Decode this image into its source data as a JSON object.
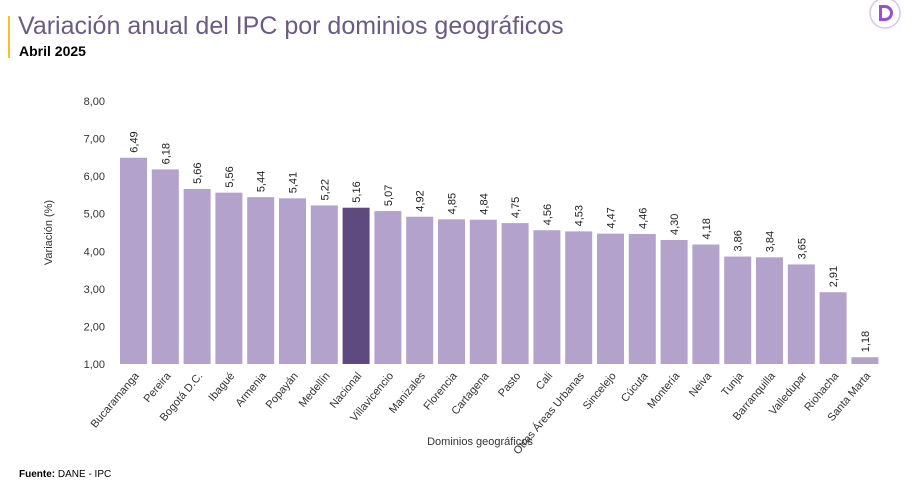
{
  "header": {
    "title": "Variación anual del IPC por dominios geográficos",
    "subtitle": "Abril 2025"
  },
  "footer": {
    "source_label": "Fuente:",
    "source_value": "DANE - IPC"
  },
  "colors": {
    "bar": "#b3a2cc",
    "highlight": "#5e4a7e",
    "accent": "#f2c230",
    "logo": "#9b4fd6"
  },
  "chart_data": {
    "type": "bar",
    "title": "",
    "xlabel": "Dominios geográficos",
    "ylabel": "Variación (%)",
    "ylim": [
      1,
      8
    ],
    "yticks": [
      "1,00",
      "2,00",
      "3,00",
      "4,00",
      "5,00",
      "6,00",
      "7,00",
      "8,00"
    ],
    "grid": false,
    "highlight": "Nacional",
    "categories": [
      "Bucaramanga",
      "Pereira",
      "Bogotá D.C.",
      "Ibagué",
      "Armenia",
      "Popayán",
      "Medellín",
      "Nacional",
      "Villavicencio",
      "Manizales",
      "Florencia",
      "Cartagena",
      "Pasto",
      "Cali",
      "Otras Áreas Urbanas",
      "Sincelejo",
      "Cúcuta",
      "Montería",
      "Neiva",
      "Tunja",
      "Barranquilla",
      "Valledupar",
      "Riohacha",
      "Santa Marta"
    ],
    "values": [
      6.49,
      6.18,
      5.66,
      5.56,
      5.44,
      5.41,
      5.22,
      5.16,
      5.07,
      4.92,
      4.85,
      4.84,
      4.75,
      4.56,
      4.53,
      4.47,
      4.46,
      4.3,
      4.18,
      3.86,
      3.84,
      3.65,
      2.91,
      1.18
    ],
    "data_labels": [
      "6,49",
      "6,18",
      "5,66",
      "5,56",
      "5,44",
      "5,41",
      "5,22",
      "5,16",
      "5,07",
      "4,92",
      "4,85",
      "4,84",
      "4,75",
      "4,56",
      "4,53",
      "4,47",
      "4,46",
      "4,30",
      "4,18",
      "3,86",
      "3,84",
      "3,65",
      "2,91",
      "1,18"
    ]
  }
}
